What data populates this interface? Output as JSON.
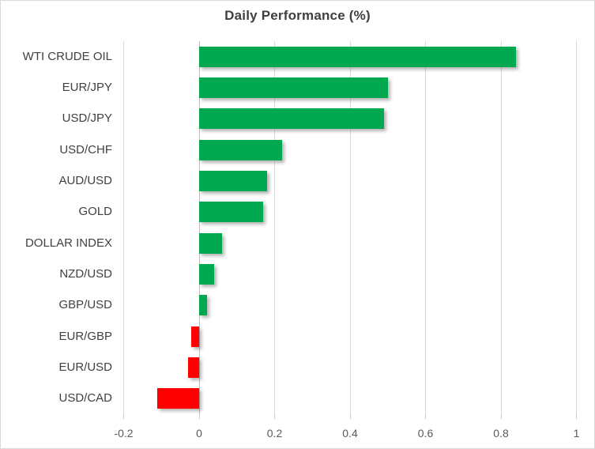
{
  "chart": {
    "title": "Daily Performance (%)"
  },
  "chart_data": {
    "type": "bar",
    "orientation": "horizontal",
    "title": "Daily Performance (%)",
    "categories": [
      "WTI CRUDE OIL",
      "EUR/JPY",
      "USD/JPY",
      "USD/CHF",
      "AUD/USD",
      "GOLD",
      "DOLLAR INDEX",
      "NZD/USD",
      "GBP/USD",
      "EUR/GBP",
      "EUR/USD",
      "USD/CAD"
    ],
    "values": [
      0.84,
      0.5,
      0.49,
      0.22,
      0.18,
      0.17,
      0.06,
      0.04,
      0.02,
      -0.02,
      -0.03,
      -0.11
    ],
    "xlim": [
      -0.2,
      1
    ],
    "xticks": [
      -0.2,
      0,
      0.2,
      0.4,
      0.6,
      0.8,
      1
    ],
    "xtick_labels": [
      "-0.2",
      "0",
      "0.2",
      "0.4",
      "0.6",
      "0.8",
      "1"
    ],
    "xlabel": "",
    "ylabel": "",
    "grid": true,
    "legend": "none",
    "colors": {
      "positive": "#00A94F",
      "negative": "#FF0000",
      "gridline": "#D9D9D9",
      "zero_axis": "#BFBFBF",
      "title_text": "#404040",
      "category_text": "#404040",
      "tick_text": "#595959",
      "border": "#D9D9D9",
      "background": "#FFFFFF"
    }
  }
}
